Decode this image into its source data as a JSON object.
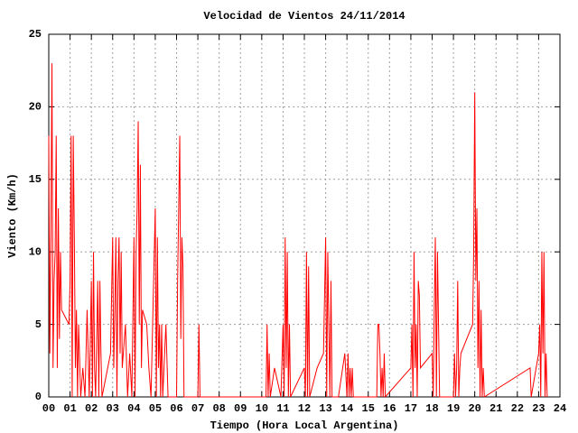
{
  "chart_data": {
    "type": "line",
    "title": "Velocidad de Vientos 24/11/2014",
    "xlabel": "Tiempo (Hora Local Argentina)",
    "ylabel": "Viento (Km/h)",
    "x": [
      0,
      0.05,
      0.1,
      0.15,
      0.2,
      0.25,
      0.3,
      0.35,
      0.4,
      0.45,
      0.5,
      0.55,
      0.6,
      0.95,
      1.0,
      1.05,
      1.1,
      1.15,
      1.2,
      1.25,
      1.3,
      1.35,
      1.4,
      1.5,
      1.6,
      1.7,
      1.8,
      1.9,
      2.0,
      2.05,
      2.1,
      2.15,
      2.2,
      2.3,
      2.35,
      2.4,
      2.45,
      2.5,
      2.9,
      3.0,
      3.05,
      3.1,
      3.15,
      3.2,
      3.25,
      3.3,
      3.35,
      3.4,
      3.45,
      3.6,
      3.7,
      3.8,
      3.9,
      4.0,
      4.05,
      4.1,
      4.15,
      4.2,
      4.25,
      4.3,
      4.35,
      4.4,
      4.6,
      4.7,
      4.8,
      5.0,
      5.05,
      5.1,
      5.15,
      5.2,
      5.25,
      5.3,
      5.35,
      5.5,
      5.6,
      6.0,
      6.05,
      6.1,
      6.15,
      6.2,
      6.25,
      6.3,
      6.35,
      7.0,
      7.05,
      7.1,
      10.1,
      10.2,
      10.25,
      10.3,
      10.35,
      10.4,
      10.6,
      10.9,
      11.0,
      11.05,
      11.1,
      11.15,
      11.2,
      11.25,
      11.3,
      11.35,
      12.0,
      12.05,
      12.1,
      12.15,
      12.2,
      12.25,
      12.6,
      12.9,
      13.0,
      13.05,
      13.1,
      13.15,
      13.2,
      13.25,
      13.3,
      13.6,
      13.9,
      14.0,
      14.05,
      14.1,
      14.15,
      14.2,
      14.25,
      14.3,
      15.4,
      15.45,
      15.5,
      15.55,
      15.6,
      15.65,
      15.7,
      15.75,
      15.8,
      17.0,
      17.05,
      17.1,
      17.15,
      17.2,
      17.25,
      17.3,
      17.35,
      17.4,
      17.45,
      18.0,
      18.05,
      18.1,
      18.15,
      18.2,
      18.25,
      18.3,
      18.35,
      19.0,
      19.05,
      19.1,
      19.15,
      19.2,
      19.25,
      19.3,
      19.35,
      19.9,
      19.95,
      20.0,
      20.05,
      20.1,
      20.15,
      20.2,
      20.25,
      20.3,
      20.35,
      20.4,
      20.45,
      22.6,
      22.65,
      23.0,
      23.05,
      23.1,
      23.15,
      23.2,
      23.25,
      23.3,
      23.35,
      23.4
    ],
    "series": [
      {
        "color": "#ff0000",
        "values": [
          18,
          3,
          11.5,
          23,
          2,
          8,
          10,
          18,
          2,
          13,
          4,
          10,
          6,
          5,
          8,
          18,
          0,
          18,
          11,
          2,
          6,
          0,
          5,
          0,
          2,
          0,
          6,
          0,
          8,
          0,
          10,
          2,
          0,
          8,
          0,
          8,
          3,
          0,
          3,
          11,
          2,
          6,
          11,
          0,
          8,
          11,
          3,
          10,
          2,
          5,
          0,
          3,
          0,
          11,
          0,
          10,
          13,
          19,
          5,
          16,
          2,
          6,
          5,
          2,
          0,
          13,
          0,
          11,
          2,
          5,
          0,
          5,
          0,
          5,
          0,
          0,
          8,
          13,
          18,
          4,
          11,
          9,
          0,
          0,
          5,
          0,
          0,
          0,
          5,
          0,
          3,
          0,
          2,
          0,
          5,
          0,
          11,
          2,
          10,
          0,
          5,
          0,
          2,
          0,
          10,
          0,
          9,
          0,
          2,
          3,
          11,
          0,
          10,
          5,
          0,
          8,
          0,
          0,
          3,
          0,
          3,
          0,
          2,
          0,
          2,
          0,
          0,
          5,
          5,
          3,
          0,
          2,
          0,
          3,
          0,
          2,
          5,
          0,
          10,
          2,
          5,
          0,
          8,
          7,
          2,
          3,
          0,
          6,
          11,
          0,
          10,
          5,
          0,
          0,
          3,
          0,
          2,
          8,
          0,
          2,
          3,
          5,
          10,
          21,
          8,
          13,
          2,
          8,
          0,
          6,
          0,
          2,
          0,
          2,
          0,
          3,
          5,
          0,
          10,
          3,
          10,
          0,
          3,
          0
        ]
      }
    ],
    "xlim": [
      0,
      24
    ],
    "xticks": [
      {
        "value": 0,
        "label": "00"
      },
      {
        "value": 1,
        "label": "01"
      },
      {
        "value": 2,
        "label": "02"
      },
      {
        "value": 3,
        "label": "03"
      },
      {
        "value": 4,
        "label": "04"
      },
      {
        "value": 5,
        "label": "05"
      },
      {
        "value": 6,
        "label": "06"
      },
      {
        "value": 7,
        "label": "07"
      },
      {
        "value": 8,
        "label": "08"
      },
      {
        "value": 9,
        "label": "09"
      },
      10,
      11,
      12,
      13,
      14,
      15,
      16,
      17,
      18,
      19,
      20,
      21,
      22,
      23,
      24
    ],
    "ylim": [
      0,
      25
    ],
    "yticks": [
      0,
      5,
      10,
      15,
      20,
      25
    ],
    "grid": true
  }
}
